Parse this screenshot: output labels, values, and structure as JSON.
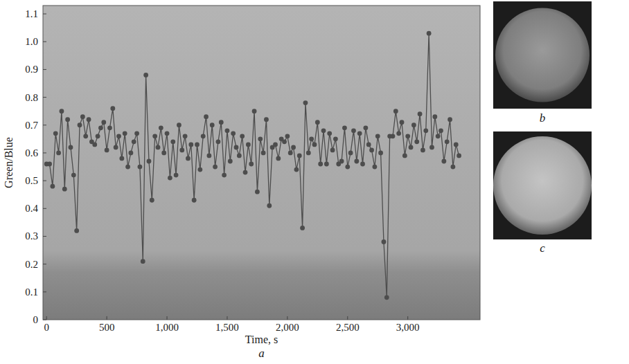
{
  "chart_data": {
    "type": "line",
    "panel_label": "a",
    "xlabel": "Time, s",
    "ylabel": "Green/Blue",
    "x": [
      0,
      25,
      50,
      75,
      100,
      125,
      150,
      175,
      200,
      225,
      250,
      275,
      300,
      325,
      350,
      375,
      400,
      425,
      450,
      475,
      500,
      525,
      550,
      575,
      600,
      625,
      650,
      675,
      700,
      725,
      750,
      775,
      800,
      825,
      850,
      875,
      900,
      925,
      950,
      975,
      1000,
      1025,
      1050,
      1075,
      1100,
      1125,
      1150,
      1175,
      1200,
      1225,
      1250,
      1275,
      1300,
      1325,
      1350,
      1375,
      1400,
      1425,
      1450,
      1475,
      1500,
      1525,
      1550,
      1575,
      1600,
      1625,
      1650,
      1675,
      1700,
      1725,
      1750,
      1775,
      1800,
      1825,
      1850,
      1875,
      1900,
      1925,
      1950,
      1975,
      2000,
      2025,
      2050,
      2075,
      2100,
      2125,
      2150,
      2175,
      2200,
      2225,
      2250,
      2275,
      2300,
      2325,
      2350,
      2375,
      2400,
      2425,
      2450,
      2475,
      2500,
      2525,
      2550,
      2575,
      2600,
      2625,
      2650,
      2675,
      2700,
      2725,
      2750,
      2775,
      2800,
      2825,
      2850,
      2875,
      2900,
      2925,
      2950,
      2975,
      3000,
      3025,
      3050,
      3075,
      3100,
      3125,
      3150,
      3175,
      3200,
      3225,
      3250,
      3275,
      3300,
      3325,
      3350,
      3375,
      3400,
      3425
    ],
    "series": [
      {
        "color": "#4d4d4d",
        "marker": "circle",
        "line_style": "solid",
        "values": [
          0.56,
          0.56,
          0.48,
          0.67,
          0.6,
          0.75,
          0.47,
          0.72,
          0.62,
          0.52,
          0.32,
          0.7,
          0.73,
          0.66,
          0.72,
          0.64,
          0.63,
          0.66,
          0.69,
          0.71,
          0.61,
          0.69,
          0.76,
          0.62,
          0.66,
          0.58,
          0.67,
          0.55,
          0.6,
          0.64,
          0.67,
          0.55,
          0.21,
          0.88,
          0.57,
          0.43,
          0.66,
          0.62,
          0.69,
          0.6,
          0.67,
          0.51,
          0.64,
          0.52,
          0.7,
          0.61,
          0.66,
          0.58,
          0.63,
          0.43,
          0.63,
          0.54,
          0.66,
          0.73,
          0.59,
          0.7,
          0.55,
          0.64,
          0.71,
          0.52,
          0.68,
          0.57,
          0.67,
          0.62,
          0.59,
          0.66,
          0.53,
          0.63,
          0.56,
          0.75,
          0.46,
          0.65,
          0.6,
          0.72,
          0.41,
          0.62,
          0.63,
          0.58,
          0.65,
          0.64,
          0.66,
          0.6,
          0.62,
          0.54,
          0.59,
          0.33,
          0.78,
          0.6,
          0.65,
          0.63,
          0.71,
          0.56,
          0.68,
          0.56,
          0.67,
          0.61,
          0.65,
          0.56,
          0.57,
          0.69,
          0.55,
          0.6,
          0.68,
          0.57,
          0.67,
          0.56,
          0.69,
          0.63,
          0.61,
          0.55,
          0.66,
          0.6,
          0.28,
          0.08,
          0.66,
          0.66,
          0.75,
          0.67,
          0.71,
          0.59,
          0.66,
          0.62,
          0.7,
          0.64,
          0.74,
          0.61,
          0.68,
          1.03,
          0.62,
          0.73,
          0.66,
          0.68,
          0.57,
          0.64,
          0.72,
          0.55,
          0.63,
          0.59
        ]
      }
    ],
    "xlim": [
      -30,
      3600
    ],
    "ylim": [
      0,
      1.13
    ],
    "xticks": [
      0,
      500,
      {
        "value": 1000,
        "label": "1,000"
      },
      {
        "value": 1500,
        "label": "1,500"
      },
      {
        "value": 2000,
        "label": "2,000"
      },
      {
        "value": 2500,
        "label": "2,500"
      },
      {
        "value": 3000,
        "label": "3,000"
      }
    ],
    "yticks": [
      0,
      0.1,
      0.2,
      0.3,
      0.4,
      0.5,
      0.6,
      0.7,
      0.8,
      0.9,
      {
        "value": 1,
        "label": "1.0"
      },
      1.1
    ],
    "grid": false
  },
  "images": [
    {
      "label": "b"
    },
    {
      "label": "c"
    }
  ]
}
